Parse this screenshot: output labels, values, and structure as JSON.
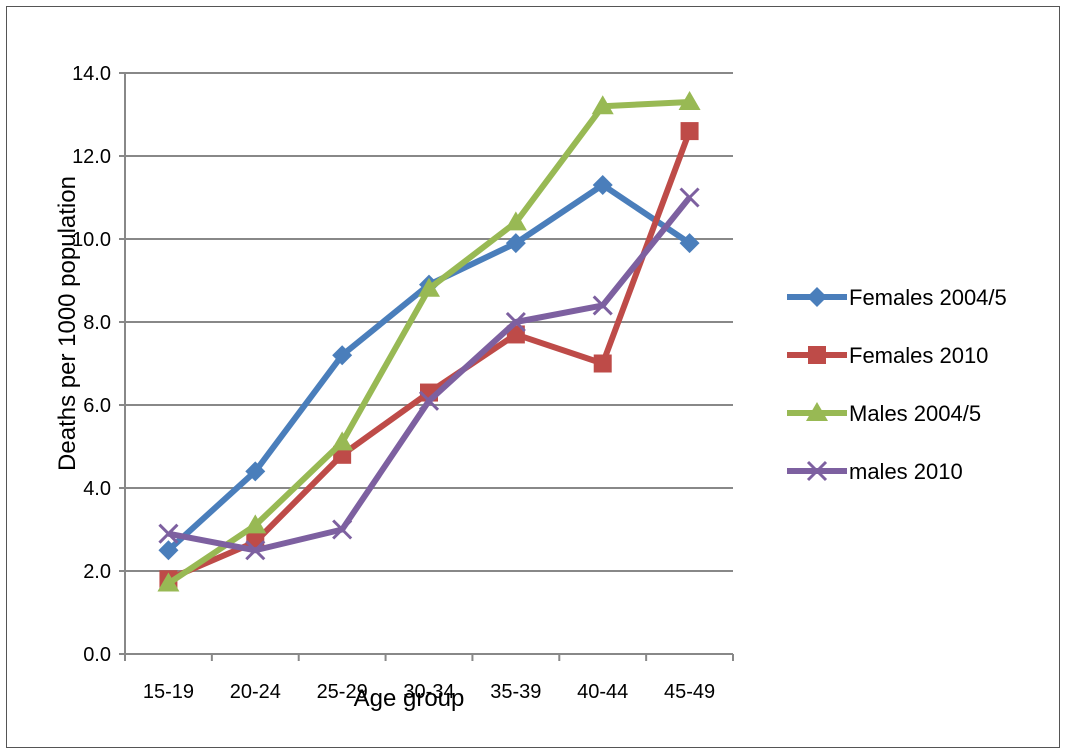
{
  "chart_data": {
    "type": "line",
    "title": "",
    "xlabel": "Age group",
    "ylabel": "Deaths per 1000 population",
    "categories": [
      "15-19",
      "20-24",
      "25-29",
      "30-34",
      "35-39",
      "40-44",
      "45-49"
    ],
    "ylim": [
      0,
      14
    ],
    "ytick_labels": [
      "0.0",
      "2.0",
      "4.0",
      "6.0",
      "8.0",
      "10.0",
      "12.0",
      "14.0"
    ],
    "grid": true,
    "legend_position": "right",
    "series": [
      {
        "name": "Females 2004/5",
        "color": "#4a7ebb",
        "marker": "diamond",
        "values": [
          2.5,
          4.4,
          7.2,
          8.9,
          9.9,
          11.3,
          9.9
        ]
      },
      {
        "name": "Females 2010",
        "color": "#be4b48",
        "marker": "square",
        "values": [
          1.8,
          2.7,
          4.8,
          6.3,
          7.7,
          7.0,
          12.6
        ]
      },
      {
        "name": "Males 2004/5",
        "color": "#98b954",
        "marker": "triangle",
        "values": [
          1.7,
          3.1,
          5.1,
          8.8,
          10.4,
          13.2,
          13.3
        ]
      },
      {
        "name": "males 2010",
        "color": "#7d60a0",
        "marker": "x",
        "values": [
          2.9,
          2.5,
          3.0,
          6.1,
          8.0,
          8.4,
          11.0
        ]
      }
    ]
  }
}
